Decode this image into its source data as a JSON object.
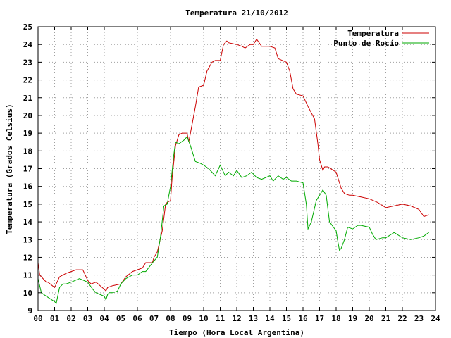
{
  "chart_data": {
    "type": "line",
    "title": "Temperatura 21/10/2012",
    "xlabel": "Tiempo (Hora Local Argentina)",
    "ylabel": "Temperatura (Grados Celsius)",
    "xlim": [
      0,
      24
    ],
    "ylim": [
      9,
      25
    ],
    "grid": true,
    "legend_position": "top-right",
    "x_ticks": [
      "00",
      "01",
      "02",
      "03",
      "04",
      "05",
      "06",
      "07",
      "08",
      "09",
      "10",
      "11",
      "12",
      "13",
      "14",
      "15",
      "16",
      "17",
      "18",
      "19",
      "20",
      "21",
      "22",
      "23",
      "24"
    ],
    "y_ticks": [
      "9",
      "10",
      "11",
      "12",
      "13",
      "14",
      "15",
      "16",
      "17",
      "18",
      "19",
      "20",
      "21",
      "22",
      "23",
      "24",
      "25"
    ],
    "series": [
      {
        "name": "Temperatura",
        "color": "#cc0000",
        "x": [
          0.0,
          0.1,
          0.2,
          0.5,
          0.6,
          1.0,
          1.3,
          1.5,
          1.7,
          2.0,
          2.3,
          2.7,
          3.0,
          3.2,
          3.5,
          4.0,
          4.1,
          4.2,
          4.5,
          5.0,
          5.3,
          5.7,
          6.0,
          6.3,
          6.5,
          6.9,
          7.0,
          7.2,
          7.5,
          7.7,
          7.8,
          8.0,
          8.1,
          8.3,
          8.5,
          8.7,
          9.0,
          9.1,
          9.3,
          9.5,
          9.7,
          10.0,
          10.2,
          10.5,
          10.7,
          11.0,
          11.2,
          11.4,
          11.5,
          12.0,
          12.3,
          12.5,
          12.8,
          13.0,
          13.2,
          13.5,
          14.0,
          14.3,
          14.5,
          15.0,
          15.2,
          15.4,
          15.6,
          16.0,
          16.3,
          16.7,
          16.9,
          17.0,
          17.2,
          17.3,
          17.5,
          18.0,
          18.3,
          18.5,
          18.8,
          19.0,
          19.5,
          20.0,
          20.5,
          21.0,
          21.5,
          22.0,
          22.5,
          23.0,
          23.3,
          23.6
        ],
        "values": [
          11.7,
          11.0,
          10.9,
          10.6,
          10.6,
          10.3,
          10.9,
          11.0,
          11.1,
          11.2,
          11.3,
          11.3,
          10.7,
          10.5,
          10.6,
          10.2,
          10.1,
          10.3,
          10.4,
          10.5,
          10.9,
          11.2,
          11.3,
          11.4,
          11.7,
          11.7,
          12.0,
          12.3,
          13.5,
          15.0,
          15.1,
          15.2,
          16.5,
          18.3,
          18.9,
          19.0,
          19.0,
          18.5,
          19.5,
          20.5,
          21.6,
          21.7,
          22.5,
          23.0,
          23.1,
          23.1,
          24.0,
          24.2,
          24.1,
          24.0,
          23.9,
          23.8,
          24.0,
          24.0,
          24.3,
          23.9,
          23.9,
          23.8,
          23.2,
          23.0,
          22.5,
          21.5,
          21.2,
          21.1,
          20.5,
          19.8,
          18.4,
          17.5,
          16.9,
          17.1,
          17.1,
          16.8,
          15.9,
          15.6,
          15.5,
          15.5,
          15.4,
          15.3,
          15.1,
          14.8,
          14.9,
          15.0,
          14.9,
          14.7,
          14.3,
          14.4
        ]
      },
      {
        "name": "Punto de Rocío",
        "color": "#00aa00",
        "x": [
          0.0,
          0.2,
          0.5,
          1.0,
          1.1,
          1.3,
          1.5,
          1.7,
          2.0,
          2.5,
          3.0,
          3.3,
          3.5,
          4.0,
          4.1,
          4.2,
          4.3,
          4.5,
          4.8,
          5.0,
          5.3,
          5.7,
          6.0,
          6.3,
          6.5,
          7.0,
          7.2,
          7.4,
          7.6,
          7.8,
          8.0,
          8.2,
          8.3,
          8.5,
          8.8,
          9.0,
          9.2,
          9.5,
          9.8,
          10.0,
          10.3,
          10.5,
          10.7,
          11.0,
          11.3,
          11.5,
          11.8,
          12.0,
          12.3,
          12.6,
          12.9,
          13.2,
          13.5,
          14.0,
          14.2,
          14.5,
          14.8,
          15.0,
          15.3,
          15.6,
          16.0,
          16.2,
          16.3,
          16.5,
          16.8,
          17.0,
          17.2,
          17.4,
          17.6,
          18.0,
          18.1,
          18.2,
          18.3,
          18.5,
          18.7,
          19.0,
          19.3,
          19.5,
          20.0,
          20.2,
          20.4,
          20.8,
          21.0,
          21.5,
          22.0,
          22.5,
          23.0,
          23.3,
          23.6
        ],
        "values": [
          10.8,
          10.0,
          9.8,
          9.5,
          9.4,
          10.3,
          10.5,
          10.5,
          10.6,
          10.8,
          10.6,
          10.2,
          10.0,
          9.8,
          9.6,
          9.9,
          10.0,
          10.0,
          10.1,
          10.5,
          10.8,
          11.0,
          11.0,
          11.2,
          11.2,
          11.8,
          12.0,
          13.2,
          14.9,
          15.0,
          16.0,
          17.8,
          18.5,
          18.4,
          18.6,
          18.8,
          18.3,
          17.4,
          17.3,
          17.2,
          17.0,
          16.8,
          16.6,
          17.2,
          16.6,
          16.8,
          16.6,
          16.9,
          16.5,
          16.6,
          16.8,
          16.5,
          16.4,
          16.6,
          16.3,
          16.6,
          16.4,
          16.5,
          16.3,
          16.3,
          16.2,
          15.0,
          13.6,
          14.0,
          15.2,
          15.5,
          15.8,
          15.5,
          14.0,
          13.5,
          12.9,
          12.4,
          12.5,
          13.0,
          13.7,
          13.6,
          13.8,
          13.8,
          13.7,
          13.3,
          13.0,
          13.1,
          13.1,
          13.4,
          13.1,
          13.0,
          13.1,
          13.2,
          13.4
        ]
      }
    ]
  }
}
